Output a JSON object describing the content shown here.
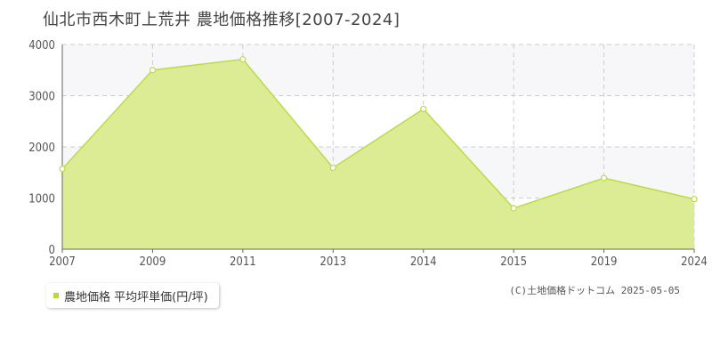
{
  "title": "仙北市西木町上荒井  農地価格推移[2007-2024]",
  "legend_label": "農地価格 平均坪単価(円/坪)",
  "copyright": "(C)土地価格ドットコム 2025-05-05",
  "colors": {
    "area_fill": "#dcec94",
    "line": "#b9dc48",
    "band": "#f7f7f9",
    "grid": "#cccccc"
  },
  "chart_data": {
    "type": "area",
    "x": [
      "2007",
      "2009",
      "2011",
      "2013",
      "2014",
      "2015",
      "2019",
      "2024"
    ],
    "series": [
      {
        "name": "農地価格 平均坪単価(円/坪)",
        "values": [
          1570,
          3500,
          3710,
          1590,
          2740,
          800,
          1390,
          980
        ]
      }
    ],
    "y_ticks": [
      "0",
      "1000",
      "2000",
      "3000",
      "4000"
    ],
    "ylim": [
      0,
      4000
    ],
    "grid": true,
    "legend_position": "bottom-left"
  }
}
